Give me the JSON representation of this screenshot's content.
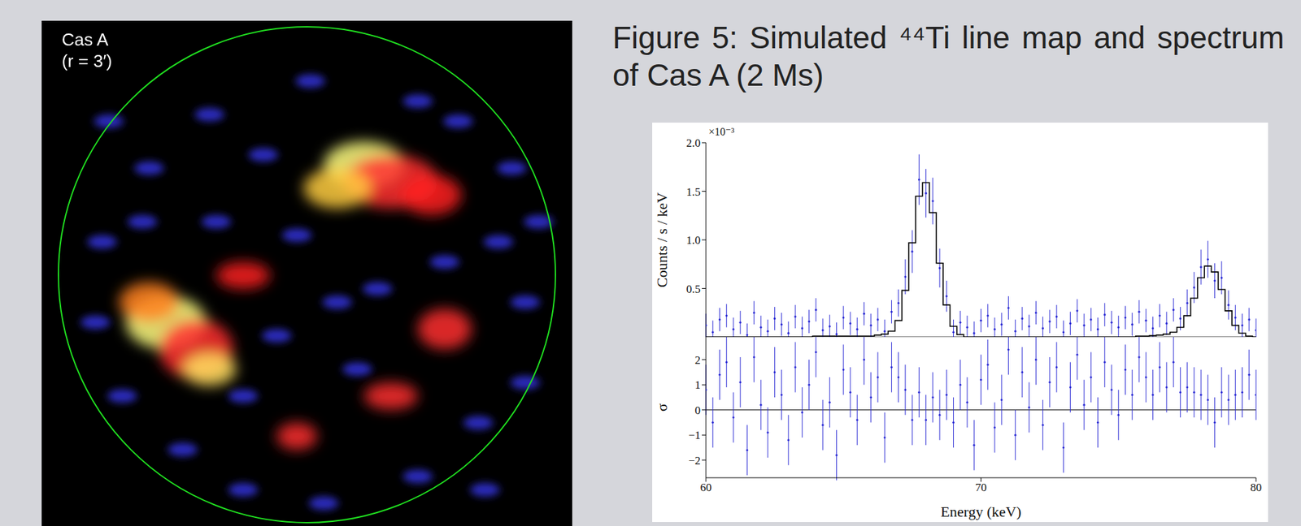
{
  "image": {
    "label": "Cas A",
    "sublabel": "(r = 3′)"
  },
  "title": "Figure 5: Simulated ⁴⁴Ti line map and spectrum of Cas A (2 Ms)",
  "chart_data": [
    {
      "type": "scatter",
      "y_label": "Counts / s / keV",
      "y_scale_label": "×10⁻³",
      "tick_labels": "y",
      "x": [
        60,
        60.25,
        60.5,
        60.75,
        61,
        61.25,
        61.5,
        61.75,
        62,
        62.25,
        62.5,
        62.75,
        63,
        63.25,
        63.5,
        63.75,
        64,
        64.25,
        64.5,
        64.75,
        65,
        65.25,
        65.5,
        65.75,
        66,
        66.25,
        66.5,
        66.75,
        67,
        67.25,
        67.5,
        67.75,
        68,
        68.25,
        68.5,
        68.75,
        69,
        69.25,
        69.5,
        69.75,
        70,
        70.25,
        70.5,
        70.75,
        71,
        71.25,
        71.5,
        71.75,
        72,
        72.25,
        72.5,
        72.75,
        73,
        73.25,
        73.5,
        73.75,
        74,
        74.25,
        74.5,
        74.75,
        75,
        75.25,
        75.5,
        75.75,
        76,
        76.25,
        76.5,
        76.75,
        77,
        77.25,
        77.5,
        77.75,
        78,
        78.25,
        78.5,
        78.75,
        79,
        79.25,
        79.5,
        79.75,
        80
      ],
      "xlim": [
        60,
        80
      ],
      "xticks": [
        60,
        70,
        80
      ],
      "ylim": [
        0,
        2
      ],
      "yticks": [
        0.5,
        {
          "value": 1,
          "label": "1.0"
        },
        1.5,
        {
          "value": 2,
          "label": "2.0"
        }
      ],
      "series": [
        {
          "type": "scatter",
          "marker": "point",
          "color": "#2a2ad4",
          "values": [
            0.12,
            0.05,
            0.18,
            0.22,
            0.08,
            0.15,
            0.02,
            0.25,
            0.1,
            0.06,
            0.19,
            0.13,
            0.04,
            0.21,
            0.09,
            0.16,
            0.28,
            0.07,
            0.11,
            0.03,
            0.2,
            0.14,
            0.08,
            0.24,
            0.12,
            0.18,
            0.06,
            0.26,
            0.35,
            0.62,
            0.88,
            1.62,
            1.48,
            1.4,
            0.71,
            0.42,
            0.05,
            0.15,
            0.1,
            0.04,
            0.17,
            0.22,
            0.08,
            0.13,
            0.3,
            0.06,
            0.19,
            0.11,
            0.25,
            0.09,
            0.16,
            0.21,
            0.05,
            0.14,
            0.27,
            0.12,
            0.18,
            0.08,
            0.23,
            0.15,
            0.1,
            0.2,
            0.13,
            0.26,
            0.17,
            0.09,
            0.22,
            0.14,
            0.28,
            0.19,
            0.35,
            0.51,
            0.72,
            0.8,
            0.58,
            0.61,
            0.33,
            0.2,
            0.12,
            0.18,
            0.07
          ],
          "errors": [
            0.12,
            0.12,
            0.12,
            0.12,
            0.12,
            0.12,
            0.12,
            0.12,
            0.12,
            0.12,
            0.12,
            0.12,
            0.12,
            0.12,
            0.12,
            0.12,
            0.12,
            0.12,
            0.12,
            0.12,
            0.12,
            0.12,
            0.12,
            0.12,
            0.12,
            0.12,
            0.12,
            0.12,
            0.14,
            0.18,
            0.22,
            0.26,
            0.25,
            0.24,
            0.2,
            0.16,
            0.13,
            0.12,
            0.12,
            0.12,
            0.12,
            0.12,
            0.12,
            0.12,
            0.12,
            0.12,
            0.12,
            0.12,
            0.12,
            0.12,
            0.12,
            0.12,
            0.12,
            0.12,
            0.12,
            0.12,
            0.12,
            0.12,
            0.12,
            0.12,
            0.12,
            0.12,
            0.12,
            0.12,
            0.12,
            0.12,
            0.12,
            0.12,
            0.12,
            0.12,
            0.14,
            0.16,
            0.18,
            0.19,
            0.18,
            0.17,
            0.15,
            0.13,
            0.12,
            0.12,
            0.12
          ]
        },
        {
          "type": "line",
          "line_style": "step",
          "color": "#000000",
          "values": [
            0,
            0,
            0,
            0,
            0,
            0,
            0,
            0,
            0,
            0,
            0,
            0,
            0,
            0,
            0,
            0,
            0.01,
            0.01,
            0.01,
            0.01,
            0.01,
            0.01,
            0.01,
            0.01,
            0.01,
            0.02,
            0.03,
            0.06,
            0.17,
            0.48,
            0.97,
            1.45,
            1.59,
            1.28,
            0.76,
            0.33,
            0.11,
            0.025,
            0,
            0,
            0,
            0,
            0,
            0,
            0,
            0,
            0,
            0,
            0,
            0,
            0,
            0,
            0,
            0,
            0,
            0,
            0,
            0,
            0,
            0,
            0,
            0,
            0,
            0.01,
            0.01,
            0.015,
            0.02,
            0.03,
            0.05,
            0.1,
            0.22,
            0.4,
            0.61,
            0.73,
            0.67,
            0.49,
            0.27,
            0.12,
            0.04,
            0.01,
            0
          ]
        }
      ]
    },
    {
      "type": "scatter",
      "x_label": "Energy (keV)",
      "y_label": "σ",
      "x": [
        60,
        60.25,
        60.5,
        60.75,
        61,
        61.25,
        61.5,
        61.75,
        62,
        62.25,
        62.5,
        62.75,
        63,
        63.25,
        63.5,
        63.75,
        64,
        64.25,
        64.5,
        64.75,
        65,
        65.25,
        65.5,
        65.75,
        66,
        66.25,
        66.5,
        66.75,
        67,
        67.25,
        67.5,
        67.75,
        68,
        68.25,
        68.5,
        68.75,
        69,
        69.25,
        69.5,
        69.75,
        70,
        70.25,
        70.5,
        70.75,
        71,
        71.25,
        71.5,
        71.75,
        72,
        72.25,
        72.5,
        72.75,
        73,
        73.25,
        73.5,
        73.75,
        74,
        74.25,
        74.5,
        74.75,
        75,
        75.25,
        75.5,
        75.75,
        76,
        76.25,
        76.5,
        76.75,
        77,
        77.25,
        77.5,
        77.75,
        78,
        78.25,
        78.5,
        78.75,
        79,
        79.25,
        79.5,
        79.75,
        80
      ],
      "xlim": [
        60,
        80
      ],
      "xticks": [
        60,
        70,
        80
      ],
      "ylim": [
        -2.7,
        2.9
      ],
      "yticks": [
        {
          "value": -2,
          "label": "−2"
        },
        {
          "value": -1,
          "label": "−1"
        },
        0,
        1,
        2
      ],
      "series": [
        {
          "type": "scatter",
          "marker": "point",
          "color": "#2a2ad4",
          "values": [
            0.8,
            -0.5,
            1.4,
            1.9,
            -0.3,
            1.1,
            -1.6,
            2.1,
            0.2,
            -0.9,
            1.5,
            0.6,
            -1.2,
            1.7,
            -0.1,
            1,
            2.3,
            -0.6,
            0.3,
            -1.8,
            1.6,
            0.7,
            -0.4,
            2,
            0.5,
            1.3,
            -1.1,
            1.7,
            1.3,
            0.8,
            -0.4,
            0.7,
            -0.4,
            0.5,
            -0.2,
            0.6,
            -0.5,
            1,
            0.3,
            -1.4,
            1.2,
            1.8,
            -0.7,
            0.4,
            2.4,
            -1,
            1.5,
            0.1,
            2,
            -0.6,
            1.1,
            1.7,
            -1.5,
            0.9,
            2.2,
            0.2,
            1.3,
            -0.5,
            1.9,
            0.8,
            -0.2,
            1.6,
            0.6,
            2.1,
            1.3,
            0.6,
            1.7,
            0.9,
            1.9,
            0.7,
            0.9,
            0.7,
            0.6,
            0.4,
            -0.5,
            0.7,
            0.4,
            0.6,
            0.7,
            1.4,
            0.6
          ],
          "errors": [
            1,
            1,
            1,
            1,
            1,
            1,
            1,
            1,
            1,
            1,
            1,
            1,
            1,
            1,
            1,
            1,
            1,
            1,
            1,
            1,
            1,
            1,
            1,
            1,
            1,
            1,
            1,
            1,
            1,
            1,
            1,
            1,
            1,
            1,
            1,
            1,
            1,
            1,
            1,
            1,
            1,
            1,
            1,
            1,
            1,
            1,
            1,
            1,
            1,
            1,
            1,
            1,
            1,
            1,
            1,
            1,
            1,
            1,
            1,
            1,
            1,
            1,
            1,
            1,
            1,
            1,
            1,
            1,
            1,
            1,
            1,
            1,
            1,
            1,
            1,
            1,
            1,
            1,
            1,
            1,
            1
          ]
        }
      ]
    }
  ]
}
